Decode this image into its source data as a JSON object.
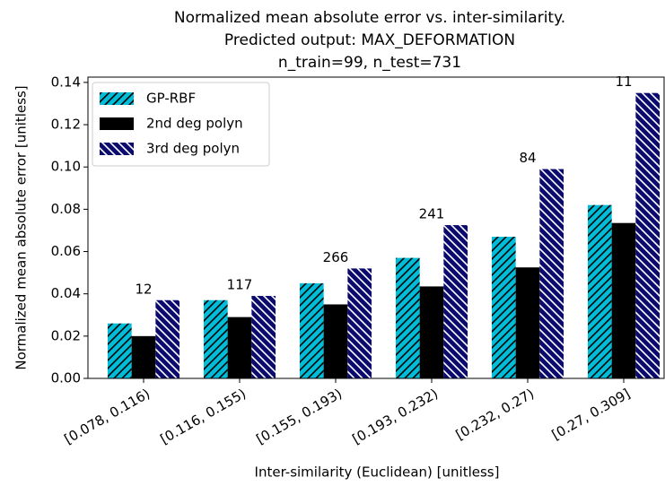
{
  "chart_data": {
    "type": "bar",
    "title": "Normalized mean absolute error vs. inter-similarity.",
    "subtitle": [
      "Predicted output: MAX_DEFORMATION",
      "n_train=99, n_test=731"
    ],
    "xlabel": "Inter-similarity (Euclidean) [unitless]",
    "ylabel": "Normalized mean absolute error [unitless]",
    "categories": [
      "[0.078, 0.116)",
      "[0.116, 0.155)",
      "[0.155, 0.193)",
      "[0.193, 0.232)",
      "[0.232, 0.27)",
      "[0.27, 0.309]"
    ],
    "series": [
      {
        "name": "GP-RBF",
        "color": "#00bcd8",
        "hatch": "/",
        "hatch_color": "#000000",
        "values": [
          0.026,
          0.037,
          0.045,
          0.057,
          0.067,
          0.082
        ]
      },
      {
        "name": "2nd deg polyn",
        "color": "#000000",
        "values": [
          0.02,
          0.029,
          0.035,
          0.0435,
          0.0525,
          0.0735
        ]
      },
      {
        "name": "3rd deg polyn",
        "color": "#0b0b6e",
        "hatch": "\\",
        "hatch_color": "#ffffff",
        "values": [
          0.037,
          0.039,
          0.052,
          0.0725,
          0.099,
          0.135
        ]
      }
    ],
    "counts": [
      12,
      117,
      266,
      241,
      84,
      11
    ],
    "ylim": [
      0,
      0.1425
    ],
    "yticks": [
      {
        "value": 0,
        "label": "0.00"
      },
      {
        "value": 0.02,
        "label": "0.02"
      },
      {
        "value": 0.04,
        "label": "0.04"
      },
      {
        "value": 0.06,
        "label": "0.06"
      },
      {
        "value": 0.08,
        "label": "0.08"
      },
      {
        "value": 0.1,
        "label": "0.10"
      },
      {
        "value": 0.12,
        "label": "0.12"
      },
      {
        "value": 0.14,
        "label": "0.14"
      }
    ],
    "legend": "upper left"
  }
}
